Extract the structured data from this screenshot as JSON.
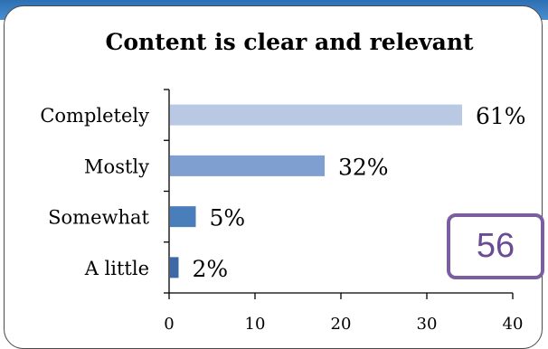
{
  "chart_data": {
    "type": "bar",
    "orientation": "horizontal",
    "title": "Content is clear and relevant",
    "categories": [
      "Completely",
      "Mostly",
      "Somewhat",
      "A little"
    ],
    "values": [
      34,
      18,
      3,
      1
    ],
    "value_labels": [
      "61%",
      "32%",
      "5%",
      "2%"
    ],
    "colors": [
      "#b9c8e3",
      "#7e9fcf",
      "#4a7ebb",
      "#3d68a6"
    ],
    "xlim": [
      0,
      40
    ],
    "xticks": [
      "0",
      "10",
      "20",
      "30",
      "40"
    ],
    "grid": false,
    "legend": "none"
  },
  "badge": {
    "text": "56"
  }
}
